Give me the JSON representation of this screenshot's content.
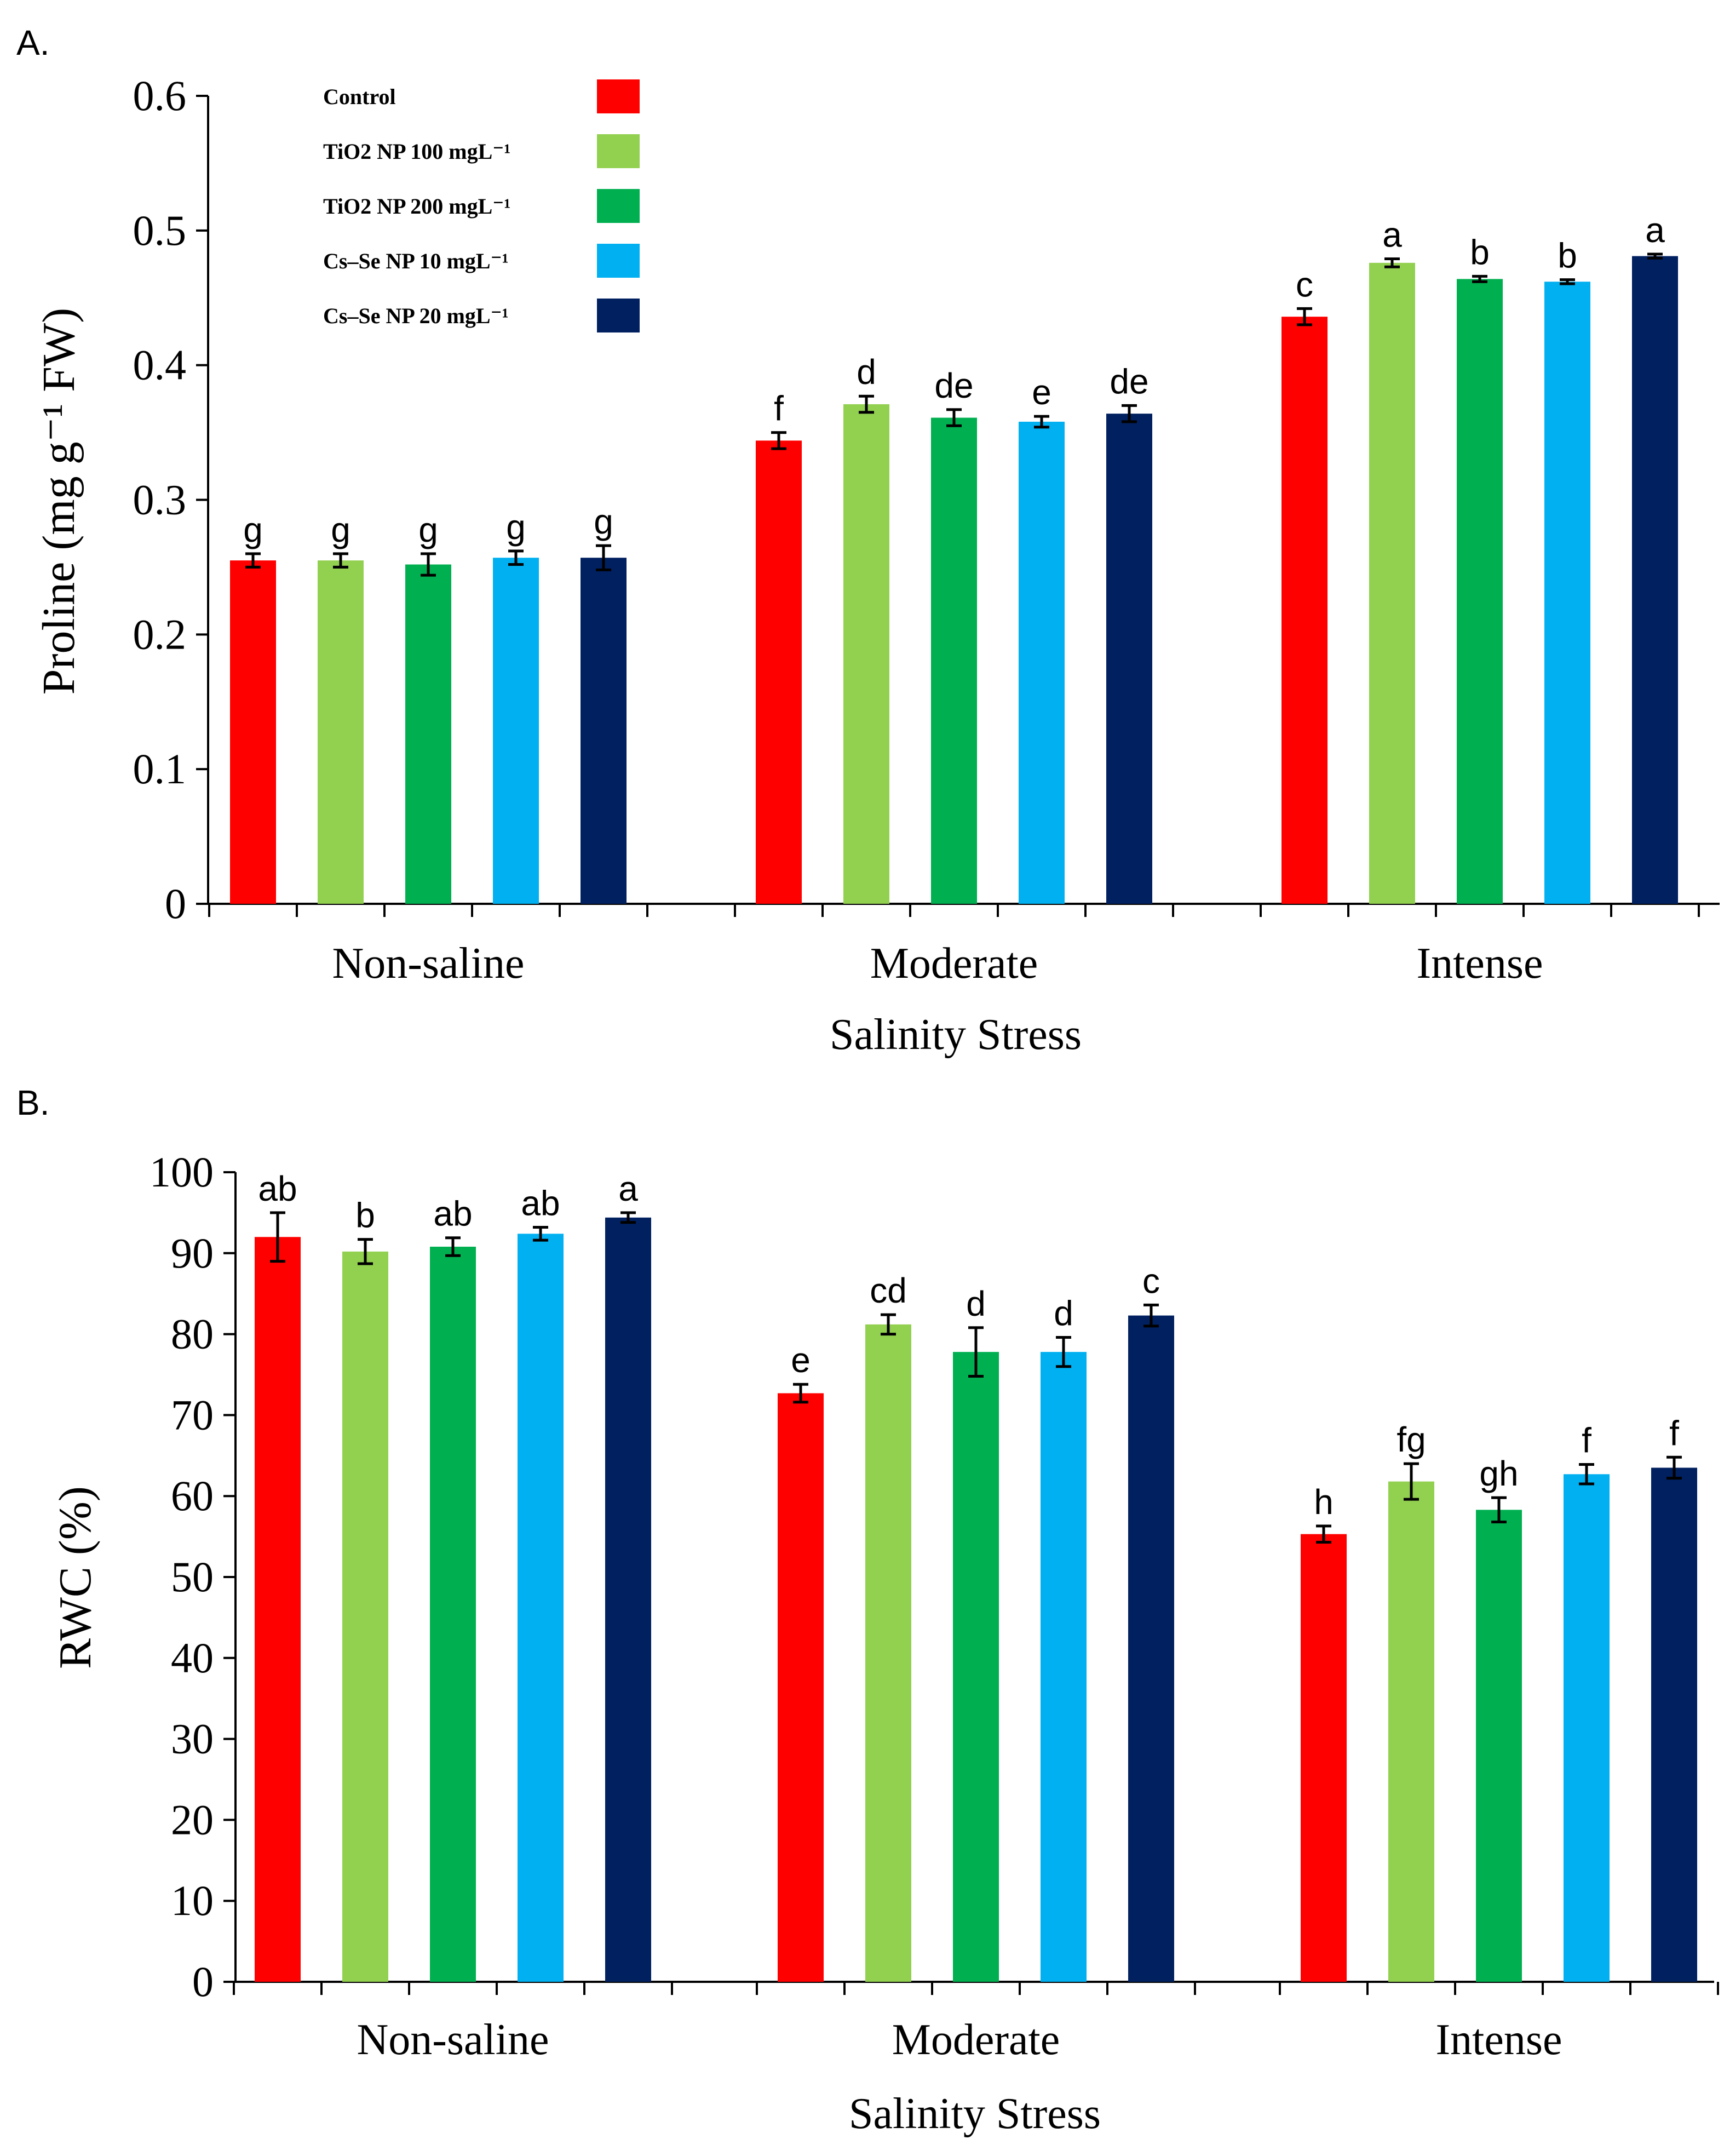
{
  "chart_data": [
    {
      "panel_label": "A.",
      "type": "bar",
      "title": "",
      "xlabel": "Salinity Stress",
      "ylabel": "Proline (mg g⁻¹ FW)",
      "ylim": [
        0,
        0.6
      ],
      "yticks": [
        "0",
        "0.1",
        "0.2",
        "0.3",
        "0.4",
        "0.5",
        "0.6"
      ],
      "categories": [
        "Non-saline",
        "Moderate",
        "Intense"
      ],
      "legend_position": "top-left",
      "series": [
        {
          "name": "Control",
          "color": "#ff0000",
          "values": [
            0.255,
            0.344,
            0.436
          ],
          "errors": [
            0.005,
            0.006,
            0.006
          ],
          "letters": [
            "g",
            "f",
            "c"
          ]
        },
        {
          "name": "TiO2 NP 100 mgL⁻¹",
          "color": "#92d050",
          "values": [
            0.255,
            0.371,
            0.476
          ],
          "errors": [
            0.005,
            0.006,
            0.003
          ],
          "letters": [
            "g",
            "d",
            "a"
          ]
        },
        {
          "name": "TiO2 NP 200 mgL⁻¹",
          "color": "#00b050",
          "values": [
            0.252,
            0.361,
            0.464
          ],
          "errors": [
            0.008,
            0.006,
            0.002
          ],
          "letters": [
            "g",
            "de",
            "b"
          ]
        },
        {
          "name": "Cs–Se NP 10 mgL⁻¹",
          "color": "#00b0f0",
          "values": [
            0.257,
            0.358,
            0.462
          ],
          "errors": [
            0.005,
            0.004,
            0.0015
          ],
          "letters": [
            "g",
            "e",
            "b"
          ]
        },
        {
          "name": "Cs–Se NP 20 mgL⁻¹",
          "color": "#002060",
          "values": [
            0.257,
            0.364,
            0.481
          ],
          "errors": [
            0.009,
            0.006,
            0.0015
          ],
          "letters": [
            "g",
            "de",
            "a"
          ]
        }
      ]
    },
    {
      "panel_label": "B.",
      "type": "bar",
      "title": "",
      "xlabel": "Salinity Stress",
      "ylabel": "RWC (%)",
      "ylim": [
        0,
        100
      ],
      "yticks": [
        "0",
        "10",
        "20",
        "30",
        "40",
        "50",
        "60",
        "70",
        "80",
        "90",
        "100"
      ],
      "categories": [
        "Non-saline",
        "Moderate",
        "Intense"
      ],
      "series": [
        {
          "name": "Control",
          "color": "#ff0000",
          "values": [
            92,
            72.7,
            55.3
          ],
          "errors": [
            3.0,
            1.1,
            1.0
          ],
          "letters": [
            "ab",
            "e",
            "h"
          ]
        },
        {
          "name": "TiO2 NP 100 mgL⁻¹",
          "color": "#92d050",
          "values": [
            90.2,
            81.2,
            61.8
          ],
          "errors": [
            1.5,
            1.2,
            2.2
          ],
          "letters": [
            "b",
            "cd",
            "fg"
          ]
        },
        {
          "name": "TiO2 NP 200 mgL⁻¹",
          "color": "#00b050",
          "values": [
            90.8,
            77.8,
            58.3
          ],
          "errors": [
            1.1,
            3.0,
            1.5
          ],
          "letters": [
            "ab",
            "d",
            "gh"
          ]
        },
        {
          "name": "Cs–Se NP 10 mgL⁻¹",
          "color": "#00b0f0",
          "values": [
            92.4,
            77.8,
            62.7
          ],
          "errors": [
            0.8,
            1.8,
            1.2
          ],
          "letters": [
            "ab",
            "d",
            "f"
          ]
        },
        {
          "name": "Cs–Se NP 20 mgL⁻¹",
          "color": "#002060",
          "values": [
            94.4,
            82.3,
            63.5
          ],
          "errors": [
            0.6,
            1.3,
            1.3
          ],
          "letters": [
            "a",
            "c",
            "f"
          ]
        }
      ]
    }
  ]
}
